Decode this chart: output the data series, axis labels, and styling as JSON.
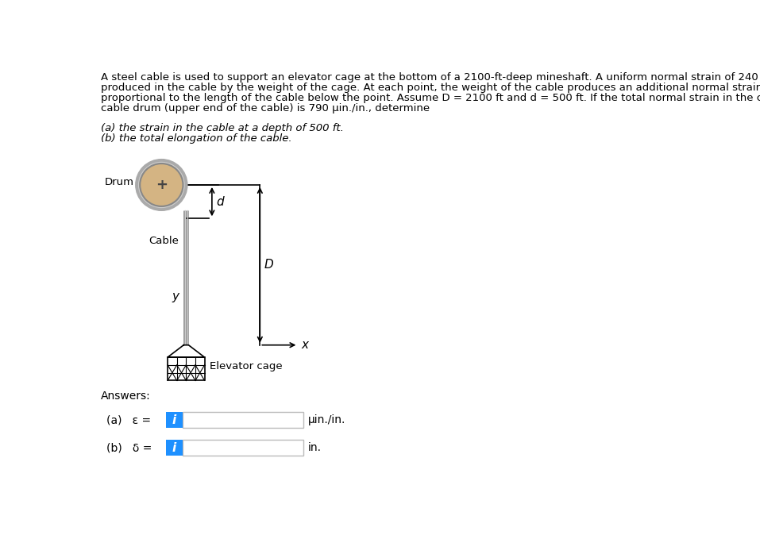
{
  "bg_color": "#ffffff",
  "text_color": "#000000",
  "answers_label": "Answers:",
  "answer_a_label": "(a)   ε =",
  "answer_b_label": "(b)   δ =",
  "answer_a_unit": "μin./in.",
  "answer_b_unit": "in.",
  "drum_label": "Drum",
  "cable_label": "Cable",
  "D_label": "D",
  "d_label": "d",
  "y_label": "y",
  "x_label": "x",
  "elevator_label": "Elevator cage",
  "drum_fill": "#d4b483",
  "input_box_color": "#1e90ff",
  "input_box_text": "i",
  "input_border": "#bbbbbb"
}
